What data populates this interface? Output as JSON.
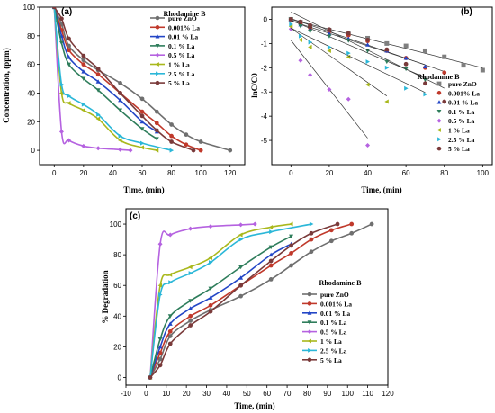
{
  "chart_data": [
    {
      "panel": "(a)",
      "type": "line",
      "xlabel": "Time, (min)",
      "ylabel": "Concentration, (ppm)",
      "xlim": [
        -10,
        130
      ],
      "ylim": [
        -10,
        100
      ],
      "xticks": [
        0,
        20,
        40,
        60,
        80,
        100,
        120
      ],
      "yticks": [
        0,
        20,
        40,
        60,
        80,
        100
      ],
      "legend_title": "Rhodamine B",
      "legend_position": "top-right",
      "series": [
        {
          "name": "pure ZnO",
          "color": "#6f6f6f",
          "marker": "circle",
          "x": [
            0,
            5,
            10,
            20,
            30,
            45,
            60,
            70,
            80,
            90,
            100,
            120
          ],
          "y": [
            100,
            88,
            73,
            63,
            56,
            47,
            36,
            27,
            18,
            11,
            6,
            0
          ]
        },
        {
          "name": "0.001% La",
          "color": "#c0392b",
          "marker": "circle",
          "x": [
            0,
            5,
            10,
            20,
            30,
            45,
            60,
            70,
            80,
            90,
            100
          ],
          "y": [
            100,
            84,
            70,
            60,
            53,
            40,
            27,
            19,
            10,
            4,
            0
          ]
        },
        {
          "name": "0.01  % La",
          "color": "#2346c6",
          "marker": "triangle",
          "x": [
            0,
            5,
            10,
            20,
            30,
            45,
            60,
            70
          ],
          "y": [
            100,
            80,
            65,
            55,
            48,
            35,
            20,
            13
          ]
        },
        {
          "name": "0.1    % La",
          "color": "#2e7d5b",
          "marker": "triangle-down",
          "x": [
            0,
            5,
            10,
            20,
            30,
            45,
            60,
            70
          ],
          "y": [
            100,
            75,
            60,
            50,
            42,
            28,
            15,
            8
          ]
        },
        {
          "name": "0.5    % La",
          "color": "#b562e0",
          "marker": "diamond",
          "x": [
            0,
            5,
            10,
            20,
            30,
            45,
            52
          ],
          "y": [
            100,
            13,
            7,
            3,
            1.5,
            0.5,
            0
          ]
        },
        {
          "name": "1       % La",
          "color": "#a9b81c",
          "marker": "triangle-left",
          "x": [
            0,
            5,
            10,
            20,
            30,
            45,
            60,
            70
          ],
          "y": [
            100,
            40,
            33,
            28,
            22,
            7,
            2,
            0
          ]
        },
        {
          "name": "2.5    % La",
          "color": "#2bb7d8",
          "marker": "triangle-right",
          "x": [
            0,
            5,
            10,
            20,
            30,
            45,
            60,
            80
          ],
          "y": [
            100,
            46,
            38,
            32,
            25,
            10,
            5,
            0
          ]
        },
        {
          "name": "5       % La",
          "color": "#7a3a3a",
          "marker": "circle",
          "x": [
            0,
            5,
            10,
            20,
            30,
            45,
            60,
            70,
            80,
            95
          ],
          "y": [
            100,
            92,
            78,
            66,
            57,
            40,
            24,
            14,
            6,
            0
          ]
        }
      ]
    },
    {
      "panel": "(b)",
      "type": "scatter",
      "xlabel": "Time, (min)",
      "ylabel": "lnC/C0",
      "xlim": [
        -10,
        105
      ],
      "ylim": [
        -6,
        0.5
      ],
      "xticks": [
        0,
        20,
        40,
        60,
        80,
        100
      ],
      "yticks": [
        0,
        -1,
        -2,
        -3,
        -4,
        -5
      ],
      "legend_title": "Rhodamine B",
      "legend_position": "bottom-right",
      "series": [
        {
          "name": "pure ZnO",
          "color": "#7f7f7f",
          "marker": "square",
          "x": [
            0,
            5,
            10,
            20,
            30,
            40,
            50,
            60,
            70,
            80,
            90,
            100
          ],
          "y": [
            0,
            -0.12,
            -0.28,
            -0.45,
            -0.6,
            -0.78,
            -1.0,
            -1.1,
            -1.3,
            -1.55,
            -1.9,
            -2.1
          ]
        },
        {
          "name": "0.001% La",
          "color": "#c0392b",
          "marker": "circle",
          "x": [
            0,
            5,
            10,
            20,
            30,
            40,
            50,
            60,
            70,
            80
          ],
          "y": [
            0,
            -0.15,
            -0.35,
            -0.5,
            -0.66,
            -0.9,
            -1.3,
            -1.6,
            -2.0,
            -2.2
          ]
        },
        {
          "name": "0.01  % La",
          "color": "#2346c6",
          "marker": "triangle",
          "x": [
            0,
            5,
            10,
            20,
            30,
            40,
            50,
            60,
            70
          ],
          "y": [
            0,
            -0.22,
            -0.42,
            -0.6,
            -0.8,
            -1.05,
            -1.3,
            -1.6,
            -1.95
          ]
        },
        {
          "name": "0.1    % La",
          "color": "#2e7d5b",
          "marker": "triangle-down",
          "x": [
            0,
            5,
            10,
            20,
            30,
            40,
            50,
            60,
            70
          ],
          "y": [
            0,
            -0.28,
            -0.5,
            -0.7,
            -0.88,
            -1.3,
            -1.75,
            -2.05,
            -2.5
          ]
        },
        {
          "name": "0.5    % La",
          "color": "#b562e0",
          "marker": "diamond",
          "x": [
            0,
            5,
            10,
            20,
            30,
            40
          ],
          "y": [
            -0.4,
            -1.7,
            -2.3,
            -2.9,
            -3.3,
            -5.2
          ]
        },
        {
          "name": "1       % La",
          "color": "#a9b81c",
          "marker": "triangle-left",
          "x": [
            0,
            5,
            10,
            20,
            30,
            40,
            50
          ],
          "y": [
            -0.3,
            -0.85,
            -1.15,
            -1.3,
            -1.55,
            -2.7,
            -3.4
          ]
        },
        {
          "name": "2.5    % La",
          "color": "#2bb7d8",
          "marker": "triangle-right",
          "x": [
            0,
            5,
            10,
            20,
            30,
            40,
            50,
            60,
            70
          ],
          "y": [
            -0.2,
            -0.7,
            -0.95,
            -1.15,
            -1.4,
            -1.75,
            -2.0,
            -2.85,
            -3.1
          ]
        },
        {
          "name": "5       % La",
          "color": "#7a3a3a",
          "marker": "circle",
          "x": [
            0,
            5,
            10,
            20,
            30,
            40,
            50,
            60,
            70,
            80
          ],
          "y": [
            0,
            -0.1,
            -0.25,
            -0.42,
            -0.58,
            -0.85,
            -1.25,
            -1.85,
            -2.65,
            -3.4
          ]
        }
      ]
    },
    {
      "panel": "(c)",
      "type": "line",
      "xlabel": "Time, (min)",
      "ylabel": "% Degradation",
      "xlim": [
        -10,
        120
      ],
      "ylim": [
        -5,
        110
      ],
      "xticks": [
        -10,
        0,
        10,
        20,
        30,
        40,
        50,
        60,
        70,
        80,
        90,
        100,
        110,
        120
      ],
      "yticks": [
        0,
        20,
        40,
        60,
        80,
        100
      ],
      "legend_title": "Rhodamine B",
      "legend_position": "right",
      "series": [
        {
          "name": "pure ZnO",
          "color": "#6f6f6f",
          "marker": "circle",
          "x": [
            2,
            7,
            12,
            22,
            32,
            47,
            62,
            72,
            82,
            92,
            102,
            112
          ],
          "y": [
            0,
            12,
            27,
            37,
            44,
            53,
            64,
            73,
            82,
            89,
            94,
            100
          ]
        },
        {
          "name": "0.001% La",
          "color": "#c0392b",
          "marker": "circle",
          "x": [
            2,
            7,
            12,
            22,
            32,
            47,
            62,
            72,
            82,
            92,
            102
          ],
          "y": [
            0,
            16,
            30,
            40,
            47,
            60,
            73,
            81,
            90,
            96,
            100
          ]
        },
        {
          "name": "0.01  % La",
          "color": "#2346c6",
          "marker": "triangle",
          "x": [
            2,
            7,
            12,
            22,
            32,
            47,
            62,
            72
          ],
          "y": [
            0,
            20,
            35,
            45,
            52,
            65,
            80,
            87
          ]
        },
        {
          "name": "0.1    % La",
          "color": "#2e7d5b",
          "marker": "triangle-down",
          "x": [
            2,
            7,
            12,
            22,
            32,
            47,
            62,
            72
          ],
          "y": [
            0,
            25,
            40,
            50,
            58,
            72,
            85,
            92
          ]
        },
        {
          "name": "0.5    % La",
          "color": "#b562e0",
          "marker": "diamond",
          "x": [
            2,
            7,
            12,
            22,
            32,
            47,
            54
          ],
          "y": [
            0,
            87,
            93,
            97,
            98.5,
            99.5,
            100
          ]
        },
        {
          "name": "1       % La",
          "color": "#a9b81c",
          "marker": "triangle-left",
          "x": [
            2,
            7,
            12,
            22,
            32,
            47,
            62,
            72
          ],
          "y": [
            0,
            60,
            67,
            72,
            78,
            93,
            98,
            100
          ]
        },
        {
          "name": "2.5    % La",
          "color": "#2bb7d8",
          "marker": "triangle-right",
          "x": [
            2,
            7,
            12,
            22,
            32,
            47,
            62,
            82
          ],
          "y": [
            0,
            54,
            62,
            68,
            75,
            90,
            95,
            100
          ]
        },
        {
          "name": "5       % La",
          "color": "#7a3a3a",
          "marker": "circle",
          "x": [
            2,
            7,
            12,
            22,
            32,
            47,
            62,
            72,
            82,
            95
          ],
          "y": [
            0,
            8,
            22,
            34,
            43,
            60,
            76,
            86,
            94,
            100
          ]
        }
      ]
    }
  ]
}
